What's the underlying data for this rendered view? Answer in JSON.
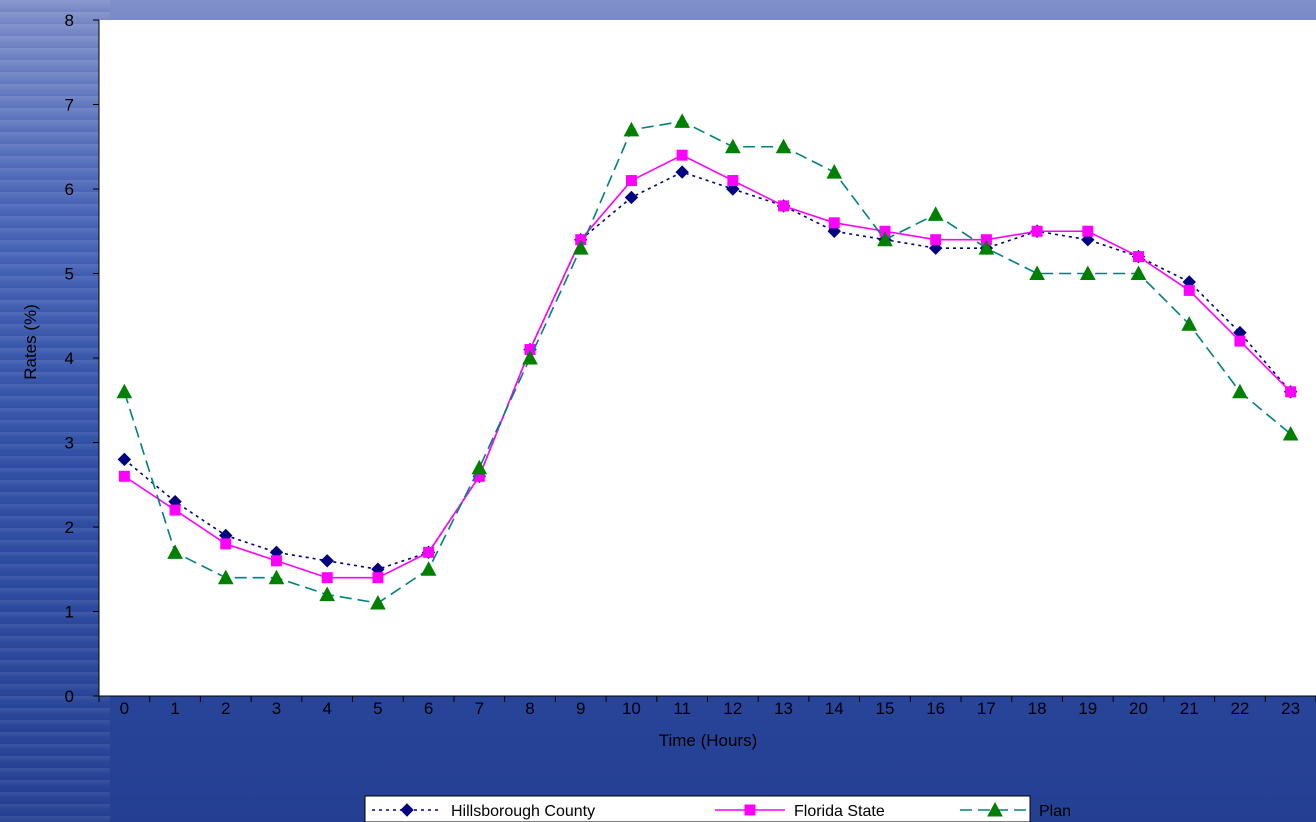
{
  "chart_data": {
    "type": "line",
    "title": "",
    "xlabel": "Time (Hours)",
    "ylabel": "Rates (%)",
    "x": [
      0,
      1,
      2,
      3,
      4,
      5,
      6,
      7,
      8,
      9,
      10,
      11,
      12,
      13,
      14,
      15,
      16,
      17,
      18,
      19,
      20,
      21,
      22,
      23
    ],
    "ylim": [
      0,
      8
    ],
    "yticks": [
      0,
      1,
      2,
      3,
      4,
      5,
      6,
      7,
      8
    ],
    "grid": false,
    "legend_position": "bottom",
    "series": [
      {
        "name": "Hillsborough County",
        "color": "#000080",
        "line_style": "dotted",
        "marker": "diamond",
        "values": [
          2.8,
          2.3,
          1.9,
          1.7,
          1.6,
          1.5,
          1.7,
          2.6,
          4.1,
          5.4,
          5.9,
          6.2,
          6.0,
          5.8,
          5.5,
          5.4,
          5.3,
          5.3,
          5.5,
          5.4,
          5.2,
          4.9,
          4.3,
          3.6
        ]
      },
      {
        "name": "Florida State",
        "color": "#ff00ff",
        "line_style": "solid",
        "marker": "square",
        "values": [
          2.6,
          2.2,
          1.8,
          1.6,
          1.4,
          1.4,
          1.7,
          2.6,
          4.1,
          5.4,
          6.1,
          6.4,
          6.1,
          5.8,
          5.6,
          5.5,
          5.4,
          5.4,
          5.5,
          5.5,
          5.2,
          4.8,
          4.2,
          3.6
        ]
      },
      {
        "name": "Plan",
        "color": "#008080",
        "marker_color": "#008000",
        "line_style": "dashed",
        "marker": "triangle",
        "values": [
          3.6,
          1.7,
          1.4,
          1.4,
          1.2,
          1.1,
          1.5,
          2.7,
          4.0,
          5.3,
          6.7,
          6.8,
          6.5,
          6.5,
          6.2,
          5.4,
          5.7,
          5.3,
          5.0,
          5.0,
          5.0,
          4.4,
          3.6,
          3.1
        ]
      }
    ]
  }
}
